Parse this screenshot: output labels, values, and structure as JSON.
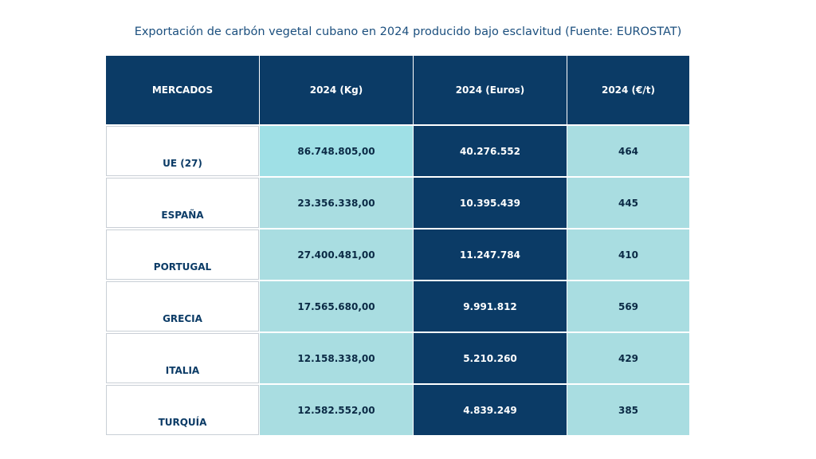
{
  "title": "Exportación de carbón vegetal cubano en 2024 producido bajo esclavitud (Fuente: EUROSTAT)",
  "table": {
    "header": [
      "MERCADOS",
      "2024 (Kg)",
      "2024 (Euros)",
      "2024 (€/t)"
    ],
    "rows": [
      [
        "UE (27)",
        "86.748.805,00",
        "40.276.552",
        "464"
      ],
      [
        "ESPAÑA",
        "23.356.338,00",
        "10.395.439",
        "445"
      ],
      [
        "PORTUGAL",
        "27.400.481,00",
        "11.247.784",
        "410"
      ],
      [
        "GRECIA",
        "17.565.680,00",
        "9.991.812",
        "569"
      ],
      [
        "ITALIA",
        "12.158.338,00",
        "5.210.260",
        "429"
      ],
      [
        "TURQUÍA",
        "12.582.552,00",
        "4.839.249",
        "385"
      ]
    ]
  }
}
